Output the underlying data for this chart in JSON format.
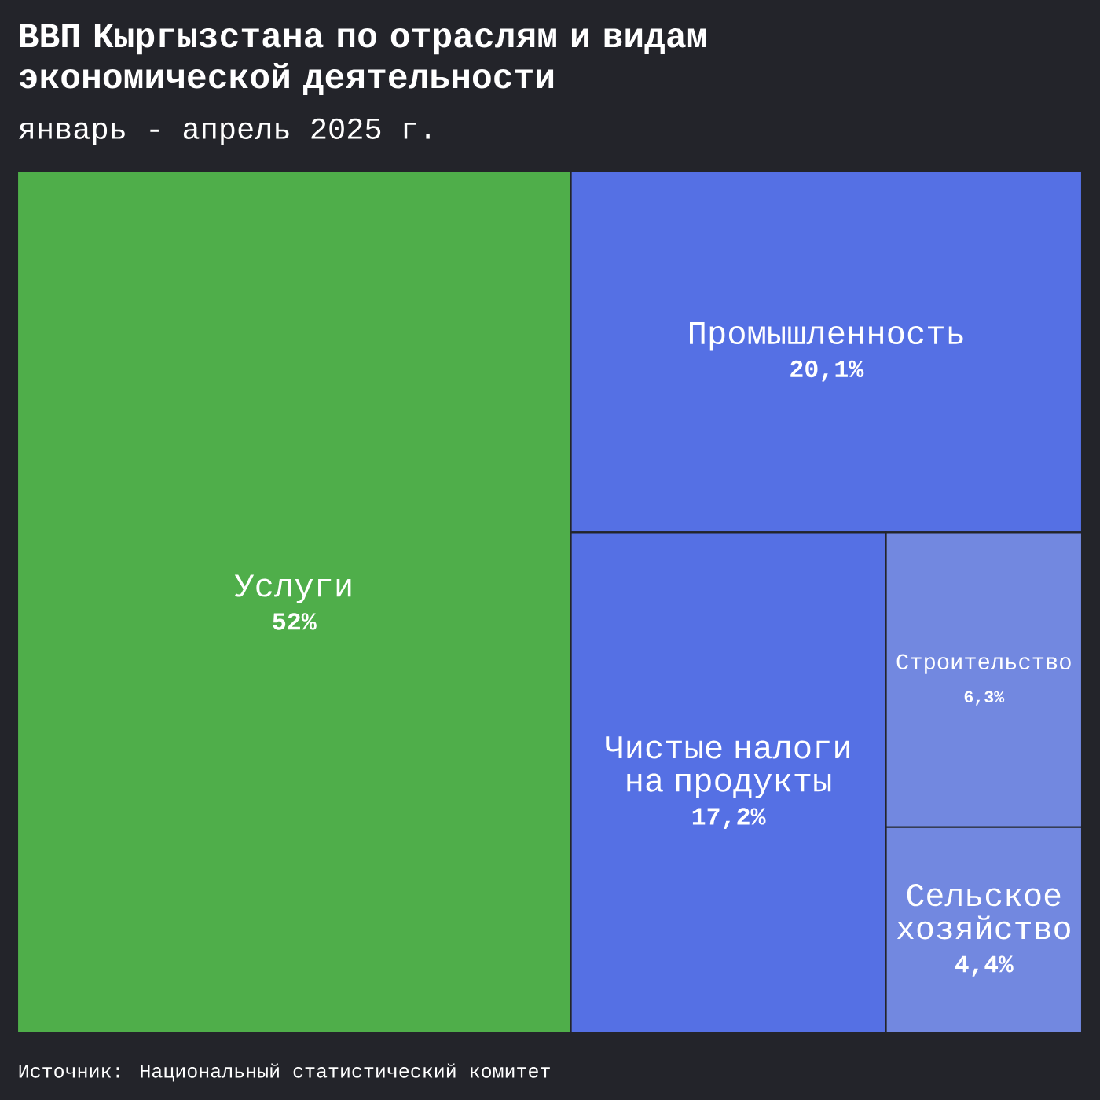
{
  "chart_data": {
    "type": "other",
    "title": "ВВП Кыргызстана по отраслям и видам экономической деятельности",
    "subtitle": "январь - апрель 2025 г.",
    "categories": [
      "Услуги",
      "Промышленность",
      "Чистые налоги на продукты",
      "Строительство",
      "Сельское хозяйство"
    ],
    "values": [
      52,
      20.1,
      17.2,
      6.3,
      4.4
    ],
    "value_labels": [
      "52%",
      "20,1%",
      "17,2%",
      "6,3%",
      "4,4%"
    ],
    "colors": [
      "#4fae4a",
      "#5570e4",
      "#5570e4",
      "#7288e0",
      "#7288e0"
    ],
    "annotations": [
      "Источник: Национальный статистический комитет"
    ]
  }
}
